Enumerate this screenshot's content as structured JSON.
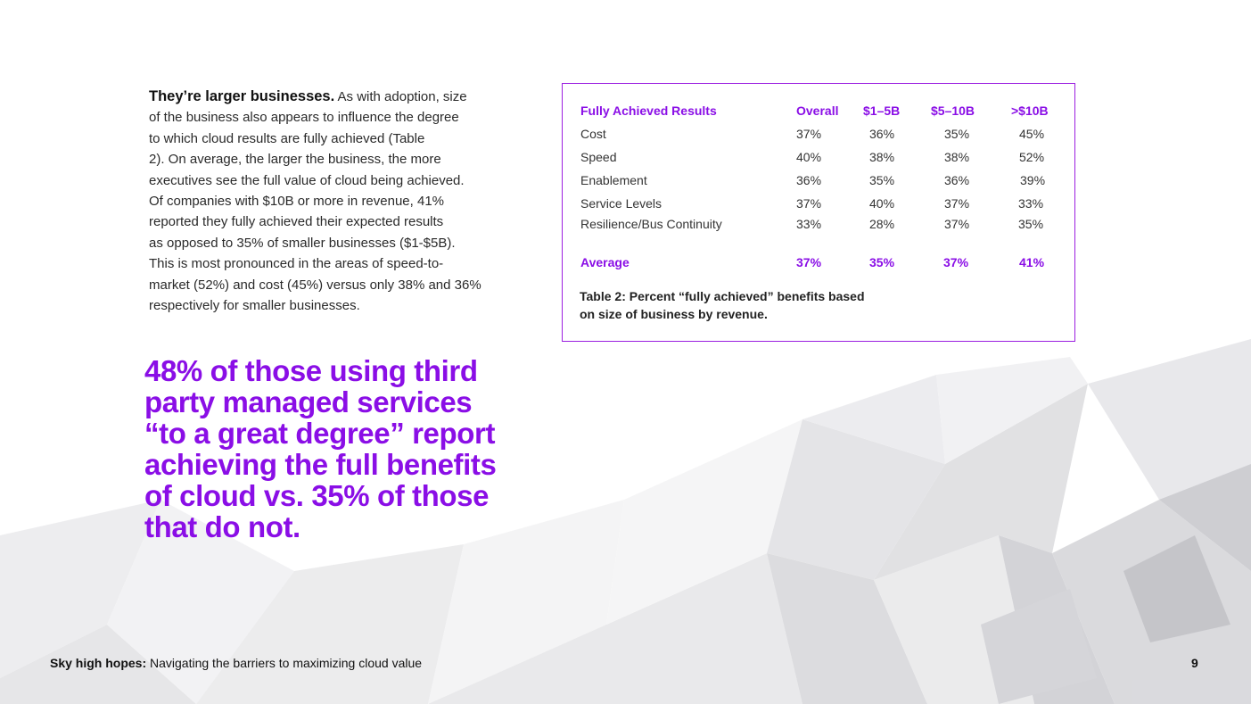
{
  "body": {
    "lead": "They’re larger businesses.",
    "lines": [
      " As with adoption, size",
      "of the business also appears to influence the degree",
      "to which cloud results are fully achieved (Table",
      "2). On average, the larger the business, the more",
      "executives see the full value of cloud being achieved.",
      "Of companies with $10B or more in revenue, 41%",
      "reported they fully achieved their expected results",
      "as opposed to 35% of smaller businesses ($1-$5B).",
      "This is most pronounced in the areas of speed-to-",
      "market (52%) and cost (45%) versus only 38% and 36%",
      "respectively for smaller businesses."
    ]
  },
  "callout": {
    "lines": [
      "48% of those using third",
      "party managed services",
      "“to a great degree” report",
      "achieving the full benefits",
      "of cloud vs. 35% of those",
      "that do not."
    ]
  },
  "table": {
    "headers": [
      "Fully Achieved Results",
      "Overall",
      "$1–5B",
      "$5–10B",
      ">$10B"
    ],
    "rows": [
      [
        "Cost",
        "37%",
        "36%",
        "35%",
        "45%"
      ],
      [
        "Speed",
        "40%",
        "38%",
        "38%",
        "52%"
      ],
      [
        "Enablement",
        "36%",
        "35%",
        "36%",
        "39%"
      ],
      [
        "Service Levels",
        "37%",
        "40%",
        "37%",
        "33%"
      ],
      [
        "Resilience/Bus Continuity",
        "33%",
        "28%",
        "37%",
        "35%"
      ]
    ],
    "average": [
      "Average",
      "37%",
      "35%",
      "37%",
      "41%"
    ],
    "caption_lines": [
      "Table 2: Percent “fully achieved” benefits based",
      "on size of business by revenue."
    ]
  },
  "footer": {
    "title_bold": "Sky high hopes:",
    "title_rest": " Navigating the barriers to maximizing cloud value",
    "page_number": "9"
  },
  "colors": {
    "accent": "#8a0ee6",
    "border": "#9b1fe0"
  }
}
